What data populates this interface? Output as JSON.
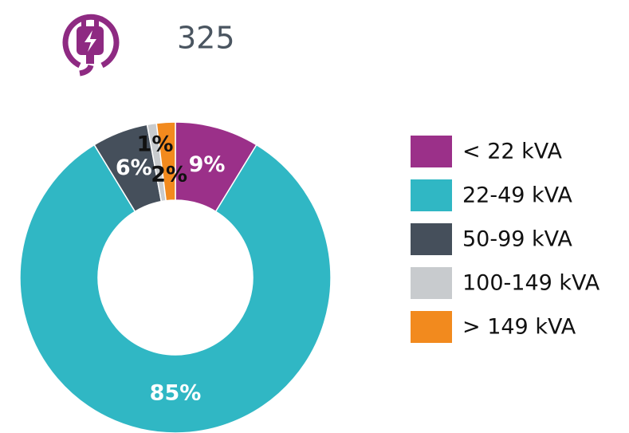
{
  "header": {
    "value": 325
  },
  "chart_data": {
    "type": "donut",
    "categories": [
      "< 22 kVA",
      "22-49 kVA",
      "50-99 kVA",
      "100-149 kVA",
      "> 149 kVA"
    ],
    "values": [
      9,
      85,
      6,
      1,
      2
    ],
    "value_labels": [
      "9%",
      "85%",
      "6%",
      "1%",
      "2%"
    ],
    "colors": [
      "#9b3089",
      "#30b7c4",
      "#454f5b",
      "#c8cbce",
      "#f28a1e"
    ],
    "legend": "right"
  }
}
